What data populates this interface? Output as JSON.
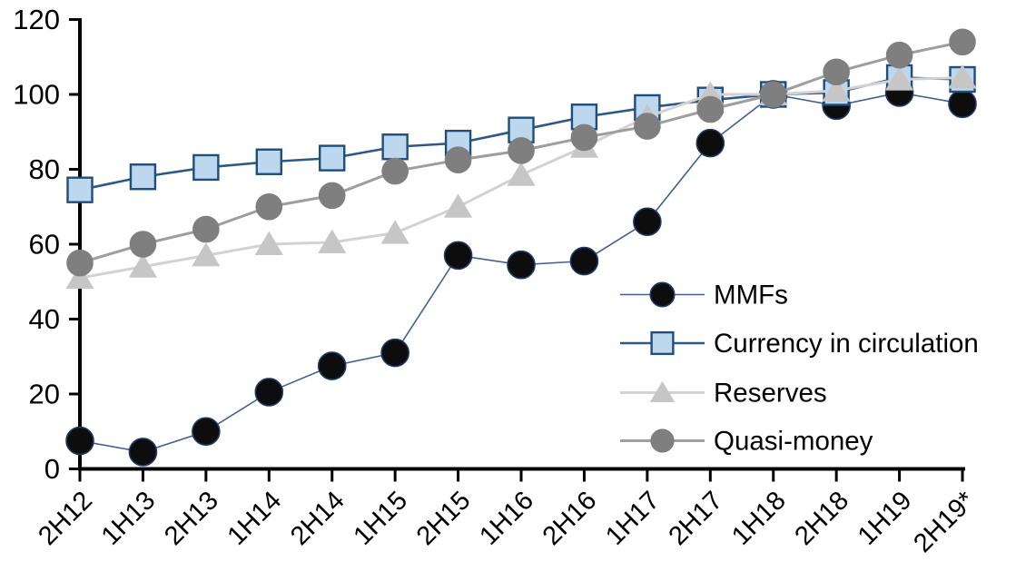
{
  "page": {
    "background": "#ffffff"
  },
  "chart_data": {
    "type": "line",
    "title": "",
    "xlabel": "",
    "ylabel": "",
    "categories": [
      "2H12",
      "1H13",
      "2H13",
      "1H14",
      "2H14",
      "1H15",
      "2H15",
      "1H16",
      "2H16",
      "1H17",
      "2H17",
      "1H18",
      "2H18",
      "1H19",
      "2H19*"
    ],
    "series": [
      {
        "name": "MMFs",
        "marker": "circle",
        "values": [
          7.5,
          4.5,
          10,
          20.5,
          27.5,
          31,
          57,
          54.5,
          55.5,
          66,
          87,
          100,
          97,
          100.5,
          97.5
        ],
        "line_color": "#44618f",
        "line_width": 1.6,
        "fill": "#0d0d0d",
        "edge": "#1f3864",
        "marker_size": 30
      },
      {
        "name": "Currency in circulation",
        "marker": "square",
        "values": [
          74.5,
          78,
          80.5,
          82,
          83,
          86,
          87,
          90.5,
          94,
          96.5,
          98.5,
          100,
          100.5,
          104.5,
          104
        ],
        "line_color": "#2d5986",
        "line_width": 2.6,
        "fill": "#bdd7ee",
        "edge": "#1f4e79",
        "marker_size": 27
      },
      {
        "name": "Reserves",
        "marker": "triangle",
        "values": [
          51,
          54,
          57,
          60,
          60.5,
          63,
          70,
          78.5,
          86,
          94,
          100,
          100,
          101,
          104,
          104.5
        ],
        "line_color": "#d2d2d2",
        "line_width": 3,
        "fill": "#c6c6c6",
        "edge": "#c6c6c6",
        "marker_size": 30
      },
      {
        "name": "Quasi-money",
        "marker": "circle",
        "values": [
          55,
          60,
          64,
          70,
          73,
          79.5,
          82.5,
          85,
          88.5,
          91.5,
          96,
          100,
          106,
          110.5,
          114
        ],
        "line_color": "#9e9e9e",
        "line_width": 3,
        "fill": "#7f7f7f",
        "edge": "#7f7f7f",
        "marker_size": 28
      }
    ],
    "ylim": [
      0,
      120
    ],
    "yticks": [
      0,
      20,
      40,
      60,
      80,
      100,
      120
    ],
    "grid": false,
    "legend_position": "inside-right",
    "axis_color": "#000000",
    "text_color": "#000000"
  }
}
